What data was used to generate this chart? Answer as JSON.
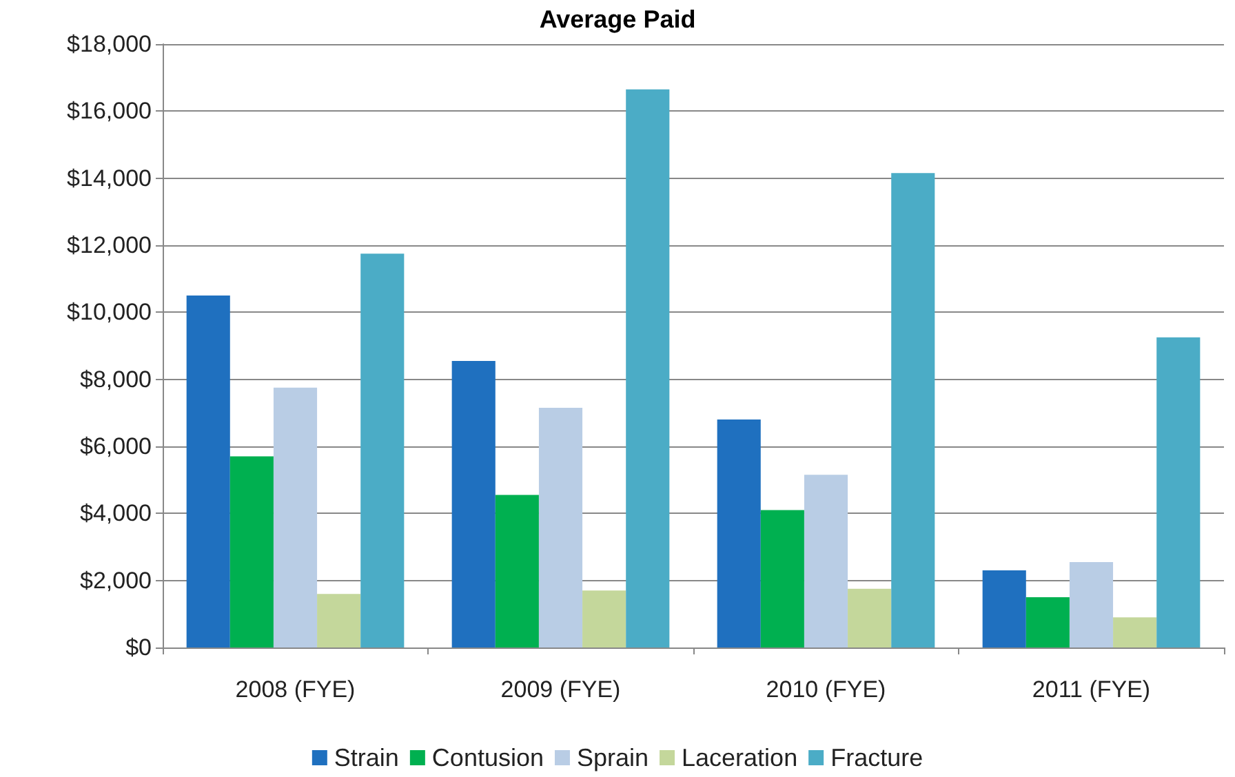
{
  "chart_data": {
    "type": "bar",
    "title": "Average Paid",
    "categories": [
      "2008 (FYE)",
      "2009 (FYE)",
      "2010 (FYE)",
      "2011 (FYE)"
    ],
    "series": [
      {
        "name": "Strain",
        "color": "#1f70bf",
        "values": [
          10500,
          8550,
          6800,
          2300
        ]
      },
      {
        "name": "Contusion",
        "color": "#00b050",
        "values": [
          5700,
          4550,
          4100,
          1500
        ]
      },
      {
        "name": "Sprain",
        "color": "#b9cde5",
        "values": [
          7750,
          7150,
          5150,
          2550
        ]
      },
      {
        "name": "Laceration",
        "color": "#c4d79b",
        "values": [
          1600,
          1700,
          1750,
          900
        ]
      },
      {
        "name": "Fracture",
        "color": "#4bacc6",
        "values": [
          11750,
          16650,
          14150,
          9250
        ]
      }
    ],
    "ylim": [
      0,
      18000
    ],
    "yticks": [
      {
        "value": 0,
        "label": "$0"
      },
      {
        "value": 2000,
        "label": "$2,000"
      },
      {
        "value": 4000,
        "label": "$4,000"
      },
      {
        "value": 6000,
        "label": "$6,000"
      },
      {
        "value": 8000,
        "label": "$8,000"
      },
      {
        "value": 10000,
        "label": "$10,000"
      },
      {
        "value": 12000,
        "label": "$12,000"
      },
      {
        "value": 14000,
        "label": "$14,000"
      },
      {
        "value": 16000,
        "label": "$16,000"
      },
      {
        "value": 18000,
        "label": "$18,000"
      }
    ],
    "grid": "y",
    "legend": "bottom"
  }
}
